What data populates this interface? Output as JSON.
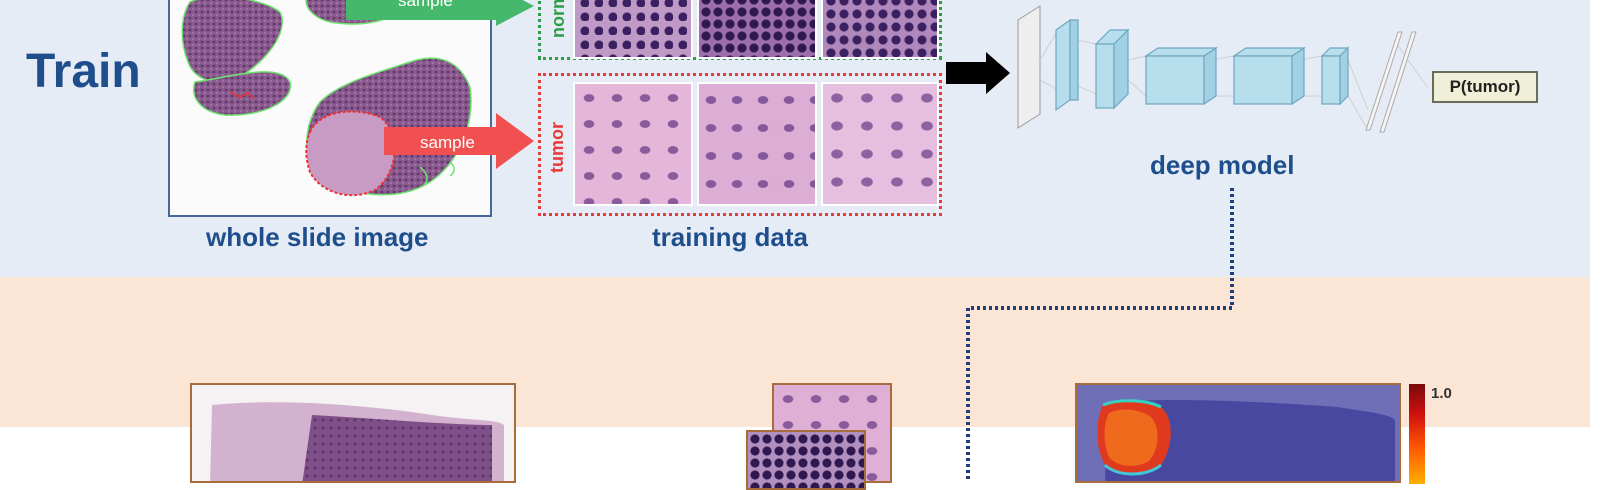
{
  "train": {
    "title": "Train",
    "wsi_caption": "whole slide image",
    "training_caption": "training data",
    "model_caption": "deep model",
    "normal_label": "normal",
    "tumor_label": "tumor",
    "sample_label_top": "sample",
    "sample_label_bottom": "sample",
    "output_label": "P(tumor)"
  },
  "test": {
    "colorbar_max": "1.0"
  },
  "colors": {
    "title_blue": "#1f4e8c",
    "normal_green": "#2e9d46",
    "tumor_red": "#e83a3a",
    "train_bg": "#e6ecf5",
    "test_bg": "#fbe6d6"
  }
}
